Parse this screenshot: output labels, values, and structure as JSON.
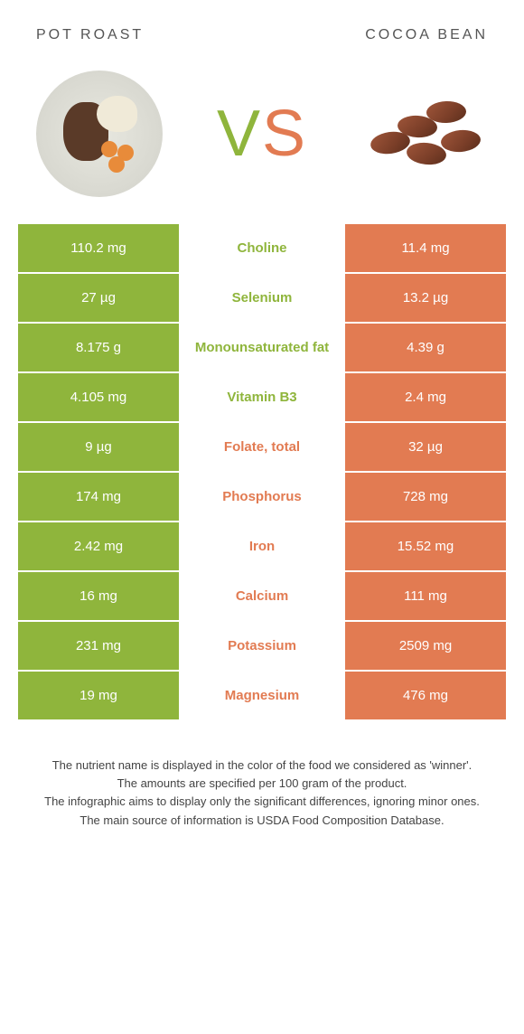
{
  "colors": {
    "green": "#8fb53c",
    "orange": "#e27b52",
    "vs_green": "#8fb53c",
    "vs_orange": "#e27b52"
  },
  "header": {
    "left": "Pot roast",
    "right": "Cocoa bean"
  },
  "vs": {
    "v": "V",
    "s": "S"
  },
  "rows": [
    {
      "left": "110.2 mg",
      "mid": "Choline",
      "right": "11.4 mg",
      "winner": "left"
    },
    {
      "left": "27 µg",
      "mid": "Selenium",
      "right": "13.2 µg",
      "winner": "left"
    },
    {
      "left": "8.175 g",
      "mid": "Monounsaturated fat",
      "right": "4.39 g",
      "winner": "left"
    },
    {
      "left": "4.105 mg",
      "mid": "Vitamin B3",
      "right": "2.4 mg",
      "winner": "left"
    },
    {
      "left": "9 µg",
      "mid": "Folate, total",
      "right": "32 µg",
      "winner": "right"
    },
    {
      "left": "174 mg",
      "mid": "Phosphorus",
      "right": "728 mg",
      "winner": "right"
    },
    {
      "left": "2.42 mg",
      "mid": "Iron",
      "right": "15.52 mg",
      "winner": "right"
    },
    {
      "left": "16 mg",
      "mid": "Calcium",
      "right": "111 mg",
      "winner": "right"
    },
    {
      "left": "231 mg",
      "mid": "Potassium",
      "right": "2509 mg",
      "winner": "right"
    },
    {
      "left": "19 mg",
      "mid": "Magnesium",
      "right": "476 mg",
      "winner": "right"
    }
  ],
  "footer": [
    "The nutrient name is displayed in the color of the food we considered as 'winner'.",
    "The amounts are specified per 100 gram of the product.",
    "The infographic aims to display only the significant differences, ignoring minor ones.",
    "The main source of information is USDA Food Composition Database."
  ]
}
